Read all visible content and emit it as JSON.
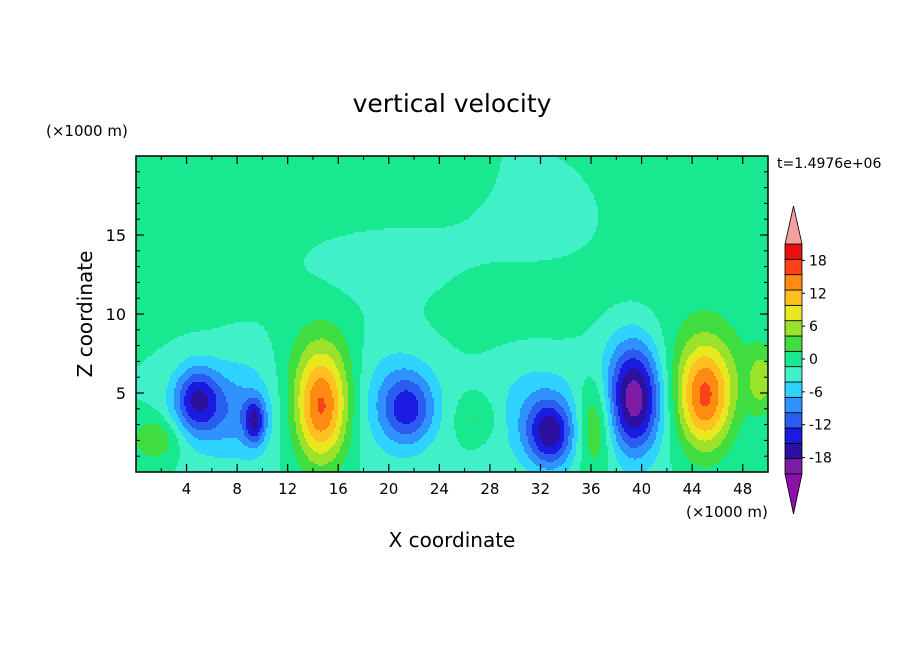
{
  "chart_data": {
    "type": "heatmap",
    "title": "vertical velocity",
    "xlabel": "X coordinate",
    "ylabel": "Z coordinate",
    "x_unit": "(×1000 m)",
    "y_unit": "(×1000 m)",
    "time_label": "t=1.4976e+06",
    "xlim": [
      0,
      50
    ],
    "ylim": [
      0,
      20
    ],
    "x_ticks": [
      4,
      8,
      12,
      16,
      20,
      24,
      28,
      32,
      36,
      40,
      44,
      48
    ],
    "y_ticks": [
      5,
      10,
      15
    ],
    "colorbar": {
      "levels": [
        -21,
        -18,
        -15,
        -12,
        -9,
        -6,
        -3,
        0,
        3,
        6,
        9,
        12,
        15,
        18,
        21
      ],
      "labels": [
        18,
        12,
        6,
        0,
        -6,
        -12,
        -18
      ],
      "colors": [
        "#7d1ca4",
        "#2c10a0",
        "#1a1ae0",
        "#2a5cf0",
        "#2f92ff",
        "#2fd3ff",
        "#40f0c8",
        "#18e890",
        "#3fdd3f",
        "#9be22b",
        "#e8e820",
        "#ffc020",
        "#ff8c10",
        "#ff4018",
        "#e81010"
      ],
      "over_color": "#f5a0a0",
      "under_color": "#8d10a8"
    },
    "background_level": 0,
    "features": [
      {
        "x": 4.8,
        "z": 4.6,
        "sx": 1.3,
        "sz": 1.5,
        "value": -13
      },
      {
        "x": 6.5,
        "z": 3.5,
        "sx": 2.5,
        "sz": 2.0,
        "value": -4
      },
      {
        "x": 1.6,
        "z": 2.1,
        "sx": 1.4,
        "sz": 1.0,
        "value": 6
      },
      {
        "x": 9.4,
        "z": 3.2,
        "sx": 0.6,
        "sz": 1.0,
        "value": -12
      },
      {
        "x": 8.5,
        "z": 4.2,
        "sx": 2.0,
        "sz": 2.5,
        "value": -4
      },
      {
        "x": 14.7,
        "z": 3.8,
        "sx": 1.5,
        "sz": 2.4,
        "value": 16
      },
      {
        "x": 14.8,
        "z": 6.5,
        "sx": 2.0,
        "sz": 2.5,
        "value": 5
      },
      {
        "x": 21.5,
        "z": 4.0,
        "sx": 1.5,
        "sz": 1.6,
        "value": -11
      },
      {
        "x": 20.0,
        "z": 4.8,
        "sx": 2.8,
        "sz": 2.8,
        "value": -4
      },
      {
        "x": 27.0,
        "z": 3.4,
        "sx": 1.2,
        "sz": 1.0,
        "value": 4
      },
      {
        "x": 32.8,
        "z": 2.4,
        "sx": 1.3,
        "sz": 1.5,
        "value": -14
      },
      {
        "x": 31.5,
        "z": 3.8,
        "sx": 2.4,
        "sz": 2.4,
        "value": -5
      },
      {
        "x": 36.3,
        "z": 3.2,
        "sx": 1.0,
        "sz": 2.2,
        "value": 8
      },
      {
        "x": 39.5,
        "z": 4.5,
        "sx": 1.4,
        "sz": 2.4,
        "value": -16
      },
      {
        "x": 38.8,
        "z": 5.6,
        "sx": 2.3,
        "sz": 2.8,
        "value": -5
      },
      {
        "x": 45.0,
        "z": 4.5,
        "sx": 1.5,
        "sz": 2.3,
        "value": 15
      },
      {
        "x": 45.0,
        "z": 6.4,
        "sx": 2.5,
        "sz": 2.4,
        "value": 5
      },
      {
        "x": 49.5,
        "z": 5.8,
        "sx": 0.8,
        "sz": 1.5,
        "value": 7
      },
      {
        "x": 16.0,
        "z": 17.2,
        "sx": 9.0,
        "sz": 1.6,
        "value": 1.6
      },
      {
        "x": 44.0,
        "z": 15.0,
        "sx": 6.0,
        "sz": 4.0,
        "value": 1.5
      },
      {
        "x": 5.0,
        "z": 13.5,
        "sx": 4.0,
        "sz": 3.0,
        "value": 1.4
      },
      {
        "x": 30.0,
        "z": 10.5,
        "sx": 8.0,
        "sz": 2.0,
        "value": 1.3
      },
      {
        "x": 20.0,
        "z": 13.0,
        "sx": 4.0,
        "sz": 2.0,
        "value": -1.6
      },
      {
        "x": 32.0,
        "z": 16.0,
        "sx": 4.0,
        "sz": 2.0,
        "value": -1.5
      }
    ]
  }
}
